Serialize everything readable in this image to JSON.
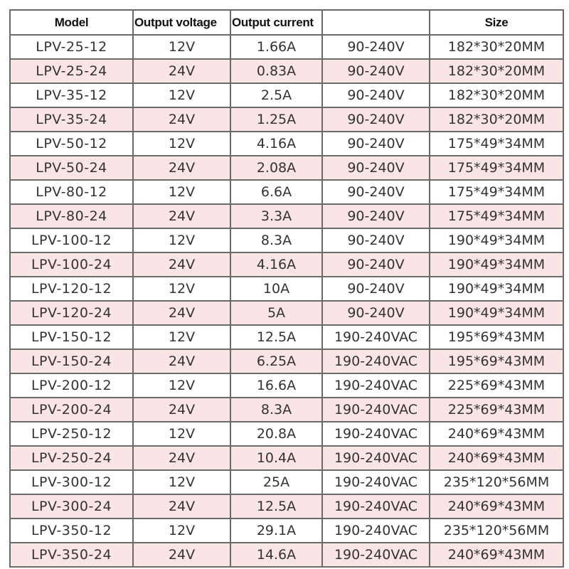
{
  "header": {
    "model": "Model",
    "voltage": "Output voltage",
    "current": "Output current",
    "input": "",
    "size": "Size"
  },
  "colors": {
    "stripe": "#fbe4e6",
    "border": "#6a6a6a"
  },
  "rows": [
    [
      "LPV-25-12",
      "12V",
      "1.66A",
      "90-240V",
      "182*30*20MM"
    ],
    [
      "LPV-25-24",
      "24V",
      "0.83A",
      "90-240V",
      "182*30*20MM"
    ],
    [
      "LPV-35-12",
      "12V",
      "2.5A",
      "90-240V",
      "182*30*20MM"
    ],
    [
      "LPV-35-24",
      "24V",
      "1.25A",
      "90-240V",
      "182*30*20MM"
    ],
    [
      "LPV-50-12",
      "12V",
      "4.16A",
      "90-240V",
      "175*49*34MM"
    ],
    [
      "LPV-50-24",
      "24V",
      "2.08A",
      "90-240V",
      "175*49*34MM"
    ],
    [
      "LPV-80-12",
      "12V",
      "6.6A",
      "90-240V",
      "175*49*34MM"
    ],
    [
      "LPV-80-24",
      "24V",
      "3.3A",
      "90-240V",
      "175*49*34MM"
    ],
    [
      "LPV-100-12",
      "12V",
      "8.3A",
      "90-240V",
      "190*49*34MM"
    ],
    [
      "LPV-100-24",
      "24V",
      "4.16A",
      "90-240V",
      "190*49*34MM"
    ],
    [
      "LPV-120-12",
      "12V",
      "10A",
      "90-240V",
      "190*49*34MM"
    ],
    [
      "LPV-120-24",
      "24V",
      "5A",
      "90-240V",
      "190*49*34MM"
    ],
    [
      "LPV-150-12",
      "12V",
      "12.5A",
      "190-240VAC",
      "195*69*43MM"
    ],
    [
      "LPV-150-24",
      "24V",
      "6.25A",
      "190-240VAC",
      "195*69*43MM"
    ],
    [
      "LPV-200-12",
      "12V",
      "16.6A",
      "190-240VAC",
      "225*69*43MM"
    ],
    [
      "LPV-200-24",
      "24V",
      "8.3A",
      "190-240VAC",
      "225*69*43MM"
    ],
    [
      "LPV-250-12",
      "12V",
      "20.8A",
      "190-240VAC",
      "240*69*43MM"
    ],
    [
      "LPV-250-24",
      "24V",
      "10.4A",
      "190-240VAC",
      "240*69*43MM"
    ],
    [
      "LPV-300-12",
      "12V",
      "25A",
      "190-240VAC",
      "235*120*56MM"
    ],
    [
      "LPV-300-24",
      "24V",
      "12.5A",
      "190-240VAC",
      "240*69*43MM"
    ],
    [
      "LPV-350-12",
      "12V",
      "29.1A",
      "190-240VAC",
      "235*120*56MM"
    ],
    [
      "LPV-350-24",
      "24V",
      "14.6A",
      "190-240VAC",
      "240*69*43MM"
    ]
  ]
}
